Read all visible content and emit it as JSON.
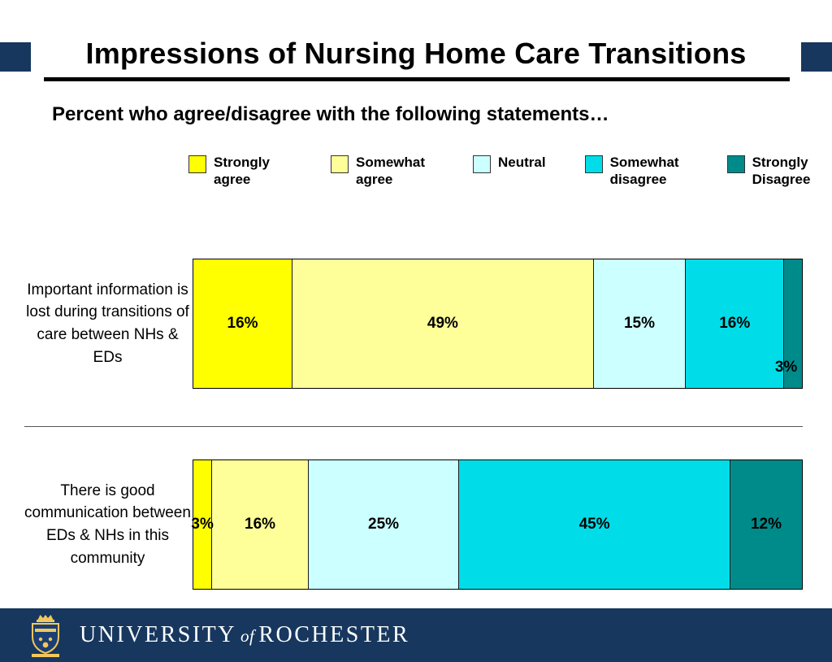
{
  "slide": {
    "title": "Impressions of Nursing Home Care Transitions",
    "subtitle": "Percent who agree/disagree with the following statements…"
  },
  "chart_data": {
    "type": "bar",
    "variant": "horizontal-stacked",
    "unit": "%",
    "xlim": [
      0,
      100
    ],
    "legend_position": "top",
    "grid": false,
    "categories": [
      "Important information is lost during transitions of care between NHs & EDs",
      "There is good communication between EDs & NHs in this community"
    ],
    "series": [
      {
        "name": "Strongly agree",
        "color": "#FFFF00",
        "values": [
          16,
          3
        ]
      },
      {
        "name": "Somewhat agree",
        "color": "#FFFF99",
        "values": [
          49,
          16
        ]
      },
      {
        "name": "Neutral",
        "color": "#CCFFFF",
        "values": [
          15,
          25
        ]
      },
      {
        "name": "Somewhat disagree",
        "color": "#00DDE8",
        "values": [
          16,
          45
        ]
      },
      {
        "name": "Strongly Disagree",
        "color": "#008B8B",
        "values": [
          3,
          12
        ]
      }
    ]
  },
  "footer": {
    "logo": "university-of-rochester-shield",
    "wordmark_university": "UNIVERSITY",
    "wordmark_of": "of",
    "wordmark_rochester": "ROCHESTER"
  },
  "colors": {
    "accent_navy": "#17375E",
    "title_rule": "#000000",
    "strongly_agree": "#FFFF00",
    "somewhat_agree": "#FFFF99",
    "neutral": "#CCFFFF",
    "somewhat_disagree": "#00DDE8",
    "strongly_disagree": "#008B8B"
  }
}
